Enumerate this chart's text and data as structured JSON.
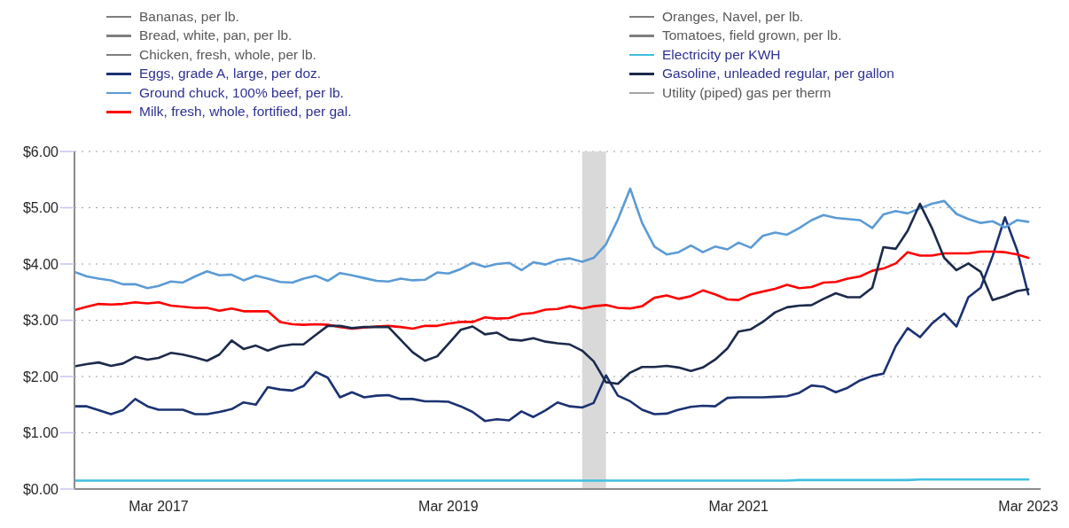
{
  "chart_data": {
    "type": "line",
    "x": [
      "2016-08",
      "2016-09",
      "2016-10",
      "2016-11",
      "2016-12",
      "2017-01",
      "2017-02",
      "2017-03",
      "2017-04",
      "2017-05",
      "2017-06",
      "2017-07",
      "2017-08",
      "2017-09",
      "2017-10",
      "2017-11",
      "2017-12",
      "2018-01",
      "2018-02",
      "2018-03",
      "2018-04",
      "2018-05",
      "2018-06",
      "2018-07",
      "2018-08",
      "2018-09",
      "2018-10",
      "2018-11",
      "2018-12",
      "2019-01",
      "2019-02",
      "2019-03",
      "2019-04",
      "2019-05",
      "2019-06",
      "2019-07",
      "2019-08",
      "2019-09",
      "2019-10",
      "2019-11",
      "2019-12",
      "2020-01",
      "2020-02",
      "2020-03",
      "2020-04",
      "2020-05",
      "2020-06",
      "2020-07",
      "2020-08",
      "2020-09",
      "2020-10",
      "2020-11",
      "2020-12",
      "2021-01",
      "2021-02",
      "2021-03",
      "2021-04",
      "2021-05",
      "2021-06",
      "2021-07",
      "2021-08",
      "2021-09",
      "2021-10",
      "2021-11",
      "2021-12",
      "2022-01",
      "2022-02",
      "2022-03",
      "2022-04",
      "2022-05",
      "2022-06",
      "2022-07",
      "2022-08",
      "2022-09",
      "2022-10",
      "2022-11",
      "2022-12",
      "2023-01",
      "2023-02",
      "2023-03"
    ],
    "xlim": [
      "2016-08",
      "2023-04"
    ],
    "xticks": [
      {
        "value": "2017-03",
        "label": "Mar 2017"
      },
      {
        "value": "2019-03",
        "label": "Mar 2019"
      },
      {
        "value": "2021-03",
        "label": "Mar 2021"
      },
      {
        "value": "2023-03",
        "label": "Mar 2023"
      }
    ],
    "ylim": [
      0,
      6
    ],
    "yticks": [
      {
        "value": 0,
        "label": "$0.00"
      },
      {
        "value": 1,
        "label": "$1.00"
      },
      {
        "value": 2,
        "label": "$2.00"
      },
      {
        "value": 3,
        "label": "$3.00"
      },
      {
        "value": 4,
        "label": "$4.00"
      },
      {
        "value": 5,
        "label": "$5.00"
      },
      {
        "value": 6,
        "label": "$6.00"
      }
    ],
    "grid": "y",
    "legend": "top",
    "bands": [
      {
        "axis": "x",
        "from": "2020-02",
        "to": "2020-04",
        "color": "#d9d9d9"
      }
    ],
    "series": [
      {
        "name": "Bananas, per lb.",
        "color": "#7f7f7f",
        "values": [
          null,
          null,
          null,
          null,
          null,
          null,
          null,
          null,
          null,
          null,
          null,
          null,
          null,
          null,
          null,
          null,
          null,
          null,
          null,
          null,
          null,
          null,
          null,
          null,
          null,
          null,
          null,
          null,
          null,
          null,
          null,
          null,
          null,
          null,
          null,
          null,
          null,
          null,
          null,
          null,
          null,
          null,
          null,
          null,
          null,
          null,
          null,
          null,
          null,
          null,
          null,
          null,
          null,
          null,
          null,
          null,
          null,
          null,
          null,
          null,
          null,
          null,
          null,
          null,
          null,
          null,
          null,
          null,
          null,
          null,
          null,
          null,
          null,
          null,
          null,
          null,
          null,
          null,
          null,
          null
        ]
      },
      {
        "name": "Bread, white, pan, per lb.",
        "color": "#7f7f7f",
        "values": [
          null,
          null,
          null,
          null,
          null,
          null,
          null,
          null,
          null,
          null,
          null,
          null,
          null,
          null,
          null,
          null,
          null,
          null,
          null,
          null,
          null,
          null,
          null,
          null,
          null,
          null,
          null,
          null,
          null,
          null,
          null,
          null,
          null,
          null,
          null,
          null,
          null,
          null,
          null,
          null,
          null,
          null,
          null,
          null,
          null,
          null,
          null,
          null,
          null,
          null,
          null,
          null,
          null,
          null,
          null,
          null,
          null,
          null,
          null,
          null,
          null,
          null,
          null,
          null,
          null,
          null,
          null,
          null,
          null,
          null,
          null,
          null,
          null,
          null,
          null,
          null,
          null,
          null,
          null,
          null
        ]
      },
      {
        "name": "Chicken, fresh, whole, per lb.",
        "color": "#7f7f7f",
        "values": [
          null,
          null,
          null,
          null,
          null,
          null,
          null,
          null,
          null,
          null,
          null,
          null,
          null,
          null,
          null,
          null,
          null,
          null,
          null,
          null,
          null,
          null,
          null,
          null,
          null,
          null,
          null,
          null,
          null,
          null,
          null,
          null,
          null,
          null,
          null,
          null,
          null,
          null,
          null,
          null,
          null,
          null,
          null,
          null,
          null,
          null,
          null,
          null,
          null,
          null,
          null,
          null,
          null,
          null,
          null,
          null,
          null,
          null,
          null,
          null,
          null,
          null,
          null,
          null,
          null,
          null,
          null,
          null,
          null,
          null,
          null,
          null,
          null,
          null,
          null,
          null,
          null,
          null,
          null,
          null
        ]
      },
      {
        "name": "Eggs, grade A, large, per doz.",
        "color": "#1b3272",
        "values": [
          1.47,
          1.47,
          1.4,
          1.33,
          1.4,
          1.6,
          1.47,
          1.41,
          1.41,
          1.41,
          1.33,
          1.33,
          1.37,
          1.42,
          1.54,
          1.5,
          1.81,
          1.77,
          1.75,
          1.83,
          2.08,
          1.98,
          1.63,
          1.72,
          1.63,
          1.66,
          1.67,
          1.6,
          1.6,
          1.56,
          1.56,
          1.55,
          1.47,
          1.37,
          1.21,
          1.24,
          1.22,
          1.38,
          1.28,
          1.4,
          1.54,
          1.47,
          1.45,
          1.53,
          2.02,
          1.66,
          1.56,
          1.41,
          1.33,
          1.34,
          1.41,
          1.46,
          1.48,
          1.47,
          1.62,
          1.63,
          1.63,
          1.63,
          1.64,
          1.65,
          1.71,
          1.84,
          1.82,
          1.72,
          1.8,
          1.93,
          2.01,
          2.05,
          2.54,
          2.86,
          2.7,
          2.94,
          3.12,
          2.89,
          3.41,
          3.58,
          4.14,
          4.83,
          4.24,
          3.46
        ]
      },
      {
        "name": "Ground chuck, 100% beef, per lb.",
        "color": "#5b9bd5",
        "values": [
          3.86,
          3.78,
          3.74,
          3.71,
          3.64,
          3.64,
          3.57,
          3.61,
          3.69,
          3.67,
          3.78,
          3.87,
          3.8,
          3.81,
          3.71,
          3.79,
          3.74,
          3.68,
          3.67,
          3.74,
          3.79,
          3.7,
          3.84,
          3.8,
          3.75,
          3.7,
          3.69,
          3.74,
          3.71,
          3.72,
          3.85,
          3.83,
          3.91,
          4.02,
          3.95,
          4.0,
          4.02,
          3.89,
          4.03,
          3.99,
          4.07,
          4.1,
          4.04,
          4.11,
          4.35,
          4.79,
          5.34,
          4.73,
          4.31,
          4.17,
          4.21,
          4.33,
          4.21,
          4.31,
          4.26,
          4.38,
          4.29,
          4.5,
          4.56,
          4.52,
          4.64,
          4.78,
          4.87,
          4.82,
          4.8,
          4.78,
          4.64,
          4.88,
          4.94,
          4.9,
          4.99,
          5.07,
          5.12,
          4.89,
          4.8,
          4.73,
          4.76,
          4.65,
          4.78,
          4.75
        ]
      },
      {
        "name": "Milk, fresh, whole, fortified, per gal.",
        "color": "#ff0000",
        "values": [
          3.18,
          3.24,
          3.29,
          3.28,
          3.29,
          3.32,
          3.3,
          3.32,
          3.26,
          3.24,
          3.22,
          3.22,
          3.17,
          3.21,
          3.16,
          3.16,
          3.16,
          2.97,
          2.93,
          2.92,
          2.93,
          2.92,
          2.88,
          2.85,
          2.87,
          2.89,
          2.9,
          2.88,
          2.85,
          2.9,
          2.9,
          2.94,
          2.97,
          2.97,
          3.05,
          3.03,
          3.04,
          3.11,
          3.13,
          3.19,
          3.2,
          3.25,
          3.21,
          3.25,
          3.27,
          3.22,
          3.21,
          3.25,
          3.4,
          3.44,
          3.38,
          3.43,
          3.53,
          3.46,
          3.37,
          3.36,
          3.46,
          3.51,
          3.56,
          3.63,
          3.57,
          3.59,
          3.67,
          3.68,
          3.74,
          3.78,
          3.88,
          3.92,
          4.01,
          4.21,
          4.15,
          4.15,
          4.19,
          4.19,
          4.19,
          4.22,
          4.22,
          4.21,
          4.17,
          4.11
        ]
      },
      {
        "name": "Oranges, Navel, per lb.",
        "color": "#7f7f7f",
        "values": [
          null,
          null,
          null,
          null,
          null,
          null,
          null,
          null,
          null,
          null,
          null,
          null,
          null,
          null,
          null,
          null,
          null,
          null,
          null,
          null,
          null,
          null,
          null,
          null,
          null,
          null,
          null,
          null,
          null,
          null,
          null,
          null,
          null,
          null,
          null,
          null,
          null,
          null,
          null,
          null,
          null,
          null,
          null,
          null,
          null,
          null,
          null,
          null,
          null,
          null,
          null,
          null,
          null,
          null,
          null,
          null,
          null,
          null,
          null,
          null,
          null,
          null,
          null,
          null,
          null,
          null,
          null,
          null,
          null,
          null,
          null,
          null,
          null,
          null,
          null,
          null,
          null,
          null,
          null,
          null
        ]
      },
      {
        "name": "Tomatoes, field grown, per lb.",
        "color": "#7f7f7f",
        "values": [
          null,
          null,
          null,
          null,
          null,
          null,
          null,
          null,
          null,
          null,
          null,
          null,
          null,
          null,
          null,
          null,
          null,
          null,
          null,
          null,
          null,
          null,
          null,
          null,
          null,
          null,
          null,
          null,
          null,
          null,
          null,
          null,
          null,
          null,
          null,
          null,
          null,
          null,
          null,
          null,
          null,
          null,
          null,
          null,
          null,
          null,
          null,
          null,
          null,
          null,
          null,
          null,
          null,
          null,
          null,
          null,
          null,
          null,
          null,
          null,
          null,
          null,
          null,
          null,
          null,
          null,
          null,
          null,
          null,
          null,
          null,
          null,
          null,
          null,
          null,
          null,
          null,
          null,
          null,
          null
        ]
      },
      {
        "name": "Electricity per KWH",
        "color": "#3fbfdf",
        "values": [
          0.15,
          0.15,
          0.15,
          0.15,
          0.15,
          0.15,
          0.15,
          0.15,
          0.15,
          0.15,
          0.15,
          0.15,
          0.15,
          0.15,
          0.15,
          0.15,
          0.15,
          0.15,
          0.15,
          0.15,
          0.15,
          0.15,
          0.15,
          0.15,
          0.15,
          0.15,
          0.15,
          0.15,
          0.15,
          0.15,
          0.15,
          0.15,
          0.15,
          0.15,
          0.15,
          0.15,
          0.15,
          0.15,
          0.15,
          0.15,
          0.15,
          0.15,
          0.15,
          0.15,
          0.15,
          0.15,
          0.15,
          0.15,
          0.15,
          0.15,
          0.15,
          0.15,
          0.15,
          0.15,
          0.15,
          0.15,
          0.15,
          0.15,
          0.15,
          0.15,
          0.16,
          0.16,
          0.16,
          0.16,
          0.16,
          0.16,
          0.16,
          0.16,
          0.16,
          0.16,
          0.17,
          0.17,
          0.17,
          0.17,
          0.17,
          0.17,
          0.17,
          0.17,
          0.17,
          0.17
        ]
      },
      {
        "name": "Gasoline, unleaded regular, per gallon",
        "color": "#1c2a4a",
        "values": [
          2.18,
          2.22,
          2.25,
          2.19,
          2.23,
          2.35,
          2.3,
          2.33,
          2.42,
          2.39,
          2.34,
          2.28,
          2.39,
          2.64,
          2.49,
          2.55,
          2.46,
          2.54,
          2.57,
          2.57,
          2.74,
          2.9,
          2.9,
          2.86,
          2.88,
          2.88,
          2.88,
          2.65,
          2.43,
          2.28,
          2.36,
          2.58,
          2.83,
          2.89,
          2.75,
          2.78,
          2.66,
          2.64,
          2.68,
          2.62,
          2.59,
          2.57,
          2.46,
          2.27,
          1.9,
          1.87,
          2.07,
          2.17,
          2.17,
          2.19,
          2.16,
          2.1,
          2.16,
          2.3,
          2.5,
          2.8,
          2.84,
          2.97,
          3.14,
          3.23,
          3.26,
          3.27,
          3.38,
          3.48,
          3.41,
          3.41,
          3.58,
          4.3,
          4.27,
          4.59,
          5.07,
          4.64,
          4.11,
          3.89,
          4.01,
          3.86,
          3.36,
          3.43,
          3.52,
          3.55
        ]
      },
      {
        "name": "Utility (piped) gas per therm",
        "color": "#a6a6a6",
        "values": [
          null,
          null,
          null,
          null,
          null,
          null,
          null,
          null,
          null,
          null,
          null,
          null,
          null,
          null,
          null,
          null,
          null,
          null,
          null,
          null,
          null,
          null,
          null,
          null,
          null,
          null,
          null,
          null,
          null,
          null,
          null,
          null,
          null,
          null,
          null,
          null,
          null,
          null,
          null,
          null,
          null,
          null,
          null,
          null,
          null,
          null,
          null,
          null,
          null,
          null,
          null,
          null,
          null,
          null,
          null,
          null,
          null,
          null,
          null,
          null,
          null,
          null,
          null,
          null,
          null,
          null,
          null,
          null,
          null,
          null,
          null,
          null,
          null,
          null,
          null,
          null,
          null,
          null,
          null,
          null
        ]
      }
    ]
  }
}
